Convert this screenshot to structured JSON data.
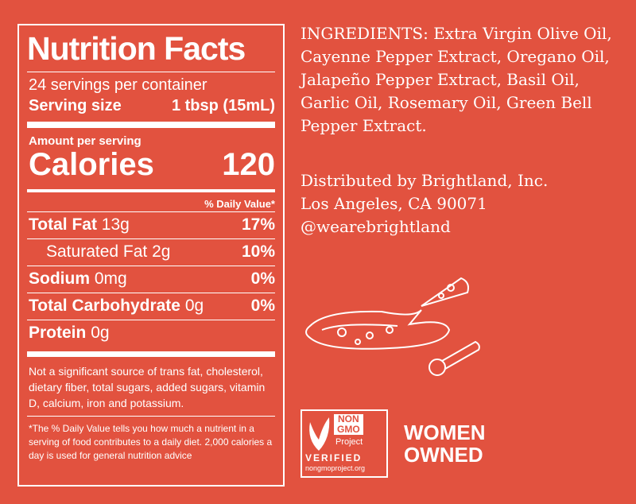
{
  "panel": {
    "title": "Nutrition Facts",
    "servings": "24 servings per container",
    "serving_size_label": "Serving size",
    "serving_size": "1 tbsp (15mL)",
    "amount_per_serving": "Amount per serving",
    "calories_label": "Calories",
    "calories": "120",
    "daily_value_header": "% Daily Value*",
    "rows": [
      {
        "name": "Total Fat",
        "amount": "13g",
        "dv": "17%"
      },
      {
        "name": "Saturated Fat",
        "amount": "2g",
        "dv": "10%"
      },
      {
        "name": "Sodium",
        "amount": "0mg",
        "dv": "0%"
      },
      {
        "name": "Total Carbohydrate",
        "amount": "0g",
        "dv": "0%"
      },
      {
        "name": "Protein",
        "amount": "0g"
      }
    ],
    "note": "Not a significant source of trans fat, cholesterol, dietary fiber, total sugars, added sugars, vitamin D, calcium, iron and potassium.",
    "footnote": "*The % Daily Value tells you how much a nutrient in a serving of food contributes to a daily diet. 2,000 calories a day is used for general nutrition advice"
  },
  "ingredients": "INGREDIENTS: Extra Virgin Olive Oil, Cayenne Pepper Extract, Oregano Oil, Jalapeño Pepper Extract, Basil Oil, Garlic Oil, Rosemary Oil, Green Bell Pepper Extract.",
  "distributor": [
    "Distributed by Brightland, Inc.",
    "Los Angeles, CA 90071",
    "@wearebrightland"
  ],
  "badge": {
    "top": [
      "NON",
      "GMO",
      "Project"
    ],
    "verified": "VERIFIED",
    "url": "nongmoproject.org"
  },
  "women_owned": [
    "WOMEN",
    "OWNED"
  ]
}
